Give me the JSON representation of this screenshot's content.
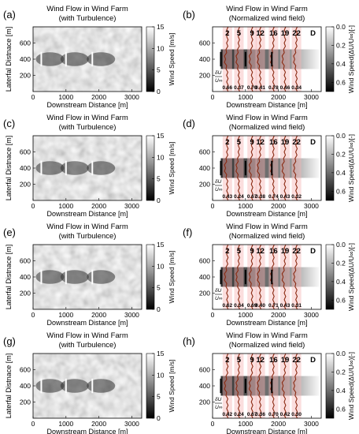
{
  "colors": {
    "background": "#8a8a8a",
    "wake": "#2e2e2e",
    "marker_left": "#ffffff",
    "marker_right": "#000000",
    "profile_line": "#8b2a12",
    "profile_fill": "#f6b6b6"
  },
  "chart_data": [
    {
      "panel": "(a)",
      "type": "heatmap",
      "title": "Wind Flow in Wind Farm",
      "subtitle": "(with Turbulence)",
      "xlabel": "Downstream Distance [m]",
      "ylabel": "Laterfal Distnace [m]",
      "xlim": [
        0,
        3300
      ],
      "ylim": [
        0,
        800
      ],
      "xticks": [
        "0",
        "1000",
        "2000",
        "3000"
      ],
      "yticks": [
        "200",
        "400",
        "600"
      ],
      "turbine_x": [
        250,
        1000,
        1800
      ],
      "turbine_y": 400,
      "colorbar": {
        "label": "Wind Speed [m/s]",
        "range": [
          0,
          15
        ],
        "ticks": [
          "0",
          "5",
          "10",
          "15"
        ]
      }
    },
    {
      "panel": "(b)",
      "type": "heatmap",
      "title": "Wind Flow in Wind Farm",
      "subtitle": "(Normalized wind field)",
      "xlabel": "Downstream Distance [m]",
      "xlim": [
        0,
        3300
      ],
      "ylim": [
        0,
        800
      ],
      "xticks": [
        "0",
        "1000",
        "2000",
        "3000"
      ],
      "yticks": [
        "200",
        "400",
        "600"
      ],
      "turbine_x": [
        250,
        1000,
        1800
      ],
      "turbine_y": 400,
      "d_labels": [
        "2",
        "5",
        "9",
        "12",
        "16",
        "19",
        "22",
        "D"
      ],
      "profile_x": [
        450,
        800,
        1200,
        1450,
        1850,
        2200,
        2550
      ],
      "deficit_label": "δU",
      "deficit_sub": "U∞",
      "deficits": [
        "0.66",
        "0.37",
        "0.70",
        "0.41",
        "0.78",
        "0.46",
        "0.34"
      ],
      "colorbar": {
        "label": "Wind Speed(ΔU/U∞)[-]",
        "range": [
          0,
          0.7
        ],
        "ticks": [
          "0.0",
          "0.2",
          "0.4",
          "0.6"
        ]
      }
    },
    {
      "panel": "(c)",
      "type": "heatmap",
      "title": "Wind Flow in Wind Farm",
      "subtitle": "(with Turbulence)",
      "xlabel": "Downstream Distance [m]",
      "ylabel": "Laterfal Distnace [m]",
      "xlim": [
        0,
        3300
      ],
      "ylim": [
        0,
        800
      ],
      "xticks": [
        "0",
        "1000",
        "2000",
        "3000"
      ],
      "yticks": [
        "200",
        "400",
        "600"
      ],
      "turbine_x": [
        250,
        1000,
        1800
      ],
      "turbine_y": 400,
      "colorbar": {
        "label": "Wind Speed [m/s]",
        "range": [
          0,
          15
        ],
        "ticks": [
          "0",
          "5",
          "10",
          "15"
        ]
      }
    },
    {
      "panel": "(d)",
      "type": "heatmap",
      "title": "Wind Flow in Wind Farm",
      "subtitle": "(Normalized wind field)",
      "xlabel": "Downstream Distance [m]",
      "xlim": [
        0,
        3300
      ],
      "ylim": [
        0,
        800
      ],
      "xticks": [
        "0",
        "1000",
        "2000",
        "3000"
      ],
      "yticks": [
        "200",
        "400",
        "600"
      ],
      "turbine_x": [
        250,
        1000,
        1800
      ],
      "turbine_y": 400,
      "d_labels": [
        "2",
        "5",
        "9",
        "12",
        "16",
        "19",
        "22",
        "D"
      ],
      "profile_x": [
        450,
        800,
        1200,
        1450,
        1850,
        2200,
        2550
      ],
      "deficit_label": "δU",
      "deficit_sub": "U∞",
      "deficits": [
        "0.43",
        "0.24",
        "0.67",
        "0.38",
        "0.74",
        "0.43",
        "0.32"
      ],
      "colorbar": {
        "label": "Wind Speed(ΔU/U∞)[-]",
        "range": [
          0,
          0.7
        ],
        "ticks": [
          "0.0",
          "0.2",
          "0.4",
          "0.6"
        ]
      }
    },
    {
      "panel": "(e)",
      "type": "heatmap",
      "title": "Wind Flow in Wind Farm",
      "subtitle": "(with Turbulence)",
      "xlabel": "Downstream Distance [m]",
      "ylabel": "Laterfal Distnace [m]",
      "xlim": [
        0,
        3300
      ],
      "ylim": [
        0,
        800
      ],
      "xticks": [
        "0",
        "1000",
        "2000",
        "3000"
      ],
      "yticks": [
        "200",
        "400",
        "600"
      ],
      "turbine_x": [
        250,
        1000,
        1800
      ],
      "turbine_y": 400,
      "colorbar": {
        "label": "Wind Speed [m/s]",
        "range": [
          0,
          15
        ],
        "ticks": [
          "0",
          "5",
          "10",
          "15"
        ]
      }
    },
    {
      "panel": "(f)",
      "type": "heatmap",
      "title": "Wind Flow in Wind Farm",
      "subtitle": "(Normalized wind field)",
      "xlabel": "Downstream Distance [m]",
      "xlim": [
        0,
        3300
      ],
      "ylim": [
        0,
        800
      ],
      "xticks": [
        "0",
        "1000",
        "2000",
        "3000"
      ],
      "yticks": [
        "200",
        "400",
        "600"
      ],
      "turbine_x": [
        250,
        1000,
        1800
      ],
      "turbine_y": 400,
      "d_labels": [
        "2",
        "5",
        "9",
        "12",
        "16",
        "19",
        "22",
        "D"
      ],
      "profile_x": [
        450,
        800,
        1200,
        1450,
        1850,
        2200,
        2550
      ],
      "deficit_label": "δU",
      "deficit_sub": "U∞",
      "deficits": [
        "0.62",
        "0.34",
        "0.69",
        "0.40",
        "0.71",
        "0.43",
        "0.31"
      ],
      "colorbar": {
        "label": "Wind Speed(ΔU/U∞)[-]",
        "range": [
          0,
          0.7
        ],
        "ticks": [
          "0.0",
          "0.2",
          "0.4",
          "0.6"
        ]
      }
    },
    {
      "panel": "(g)",
      "type": "heatmap",
      "title": "Wind Flow in Wind Farm",
      "subtitle": "(with Turbulence)",
      "xlabel": "Downstream Distance [m]",
      "ylabel": "Laterfal Distnace [m]",
      "xlim": [
        0,
        3300
      ],
      "ylim": [
        0,
        800
      ],
      "xticks": [
        "0",
        "1000",
        "2000",
        "3000"
      ],
      "yticks": [
        "200",
        "400",
        "600"
      ],
      "turbine_x": [
        250,
        1000,
        1800
      ],
      "turbine_y": 400,
      "colorbar": {
        "label": "Wind Speed [m/s]",
        "range": [
          0,
          15
        ],
        "ticks": [
          "0",
          "5",
          "10",
          "15"
        ]
      }
    },
    {
      "panel": "(h)",
      "type": "heatmap",
      "title": "Wind Flow in Wind Farm",
      "subtitle": "(Normalized wind field)",
      "xlabel": "Downstream Distance [m]",
      "xlim": [
        0,
        3300
      ],
      "ylim": [
        0,
        800
      ],
      "xticks": [
        "0",
        "1000",
        "2000",
        "3000"
      ],
      "yticks": [
        "200",
        "400",
        "600"
      ],
      "turbine_x": [
        250,
        1000,
        1800
      ],
      "turbine_y": 400,
      "d_labels": [
        "2",
        "5",
        "9",
        "12",
        "16",
        "19",
        "22",
        "D"
      ],
      "profile_x": [
        450,
        800,
        1200,
        1450,
        1850,
        2200,
        2550
      ],
      "deficit_label": "δU",
      "deficit_sub": "U∞",
      "deficits": [
        "0.42",
        "0.24",
        "0.67",
        "0.36",
        "0.70",
        "0.42",
        "0.30"
      ],
      "colorbar": {
        "label": "Wind Speed(ΔU/U∞)[-]",
        "range": [
          0,
          0.7
        ],
        "ticks": [
          "0.0",
          "0.2",
          "0.4",
          "0.6"
        ]
      }
    }
  ]
}
